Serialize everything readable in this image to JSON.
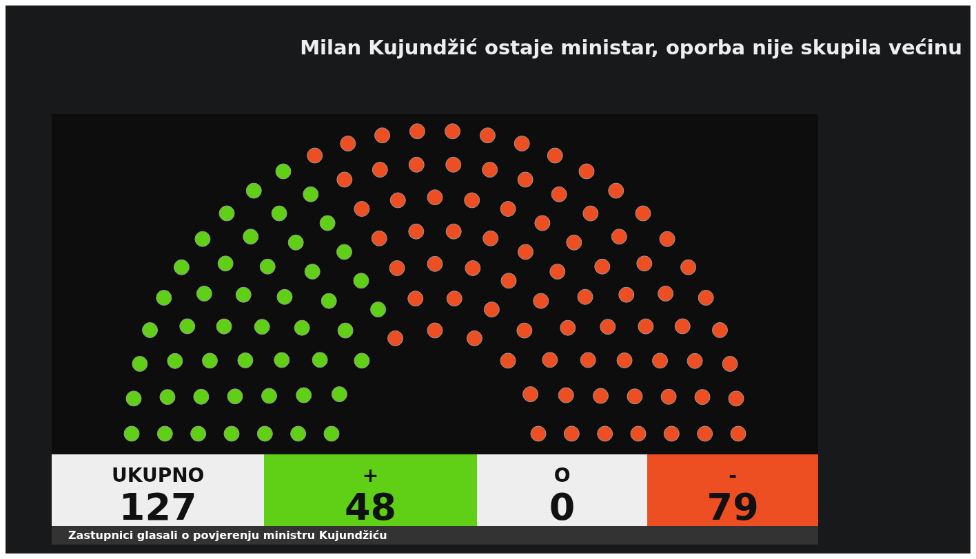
{
  "chart_data": {
    "type": "other",
    "title": "Milan Kujundžić ostaje ministar, oporba nije skupila većinu",
    "categories": [
      "UKUPNO",
      "+",
      "O",
      "-"
    ],
    "values": [
      127,
      48,
      0,
      79
    ],
    "colors": [
      "#eeeeee",
      "#5fd016",
      "#eeeeee",
      "#ee4f22"
    ],
    "data_labels": true,
    "annotations": [
      "Zastupnici glasali o povjerenju ministru Kujundžiću"
    ]
  }
}
